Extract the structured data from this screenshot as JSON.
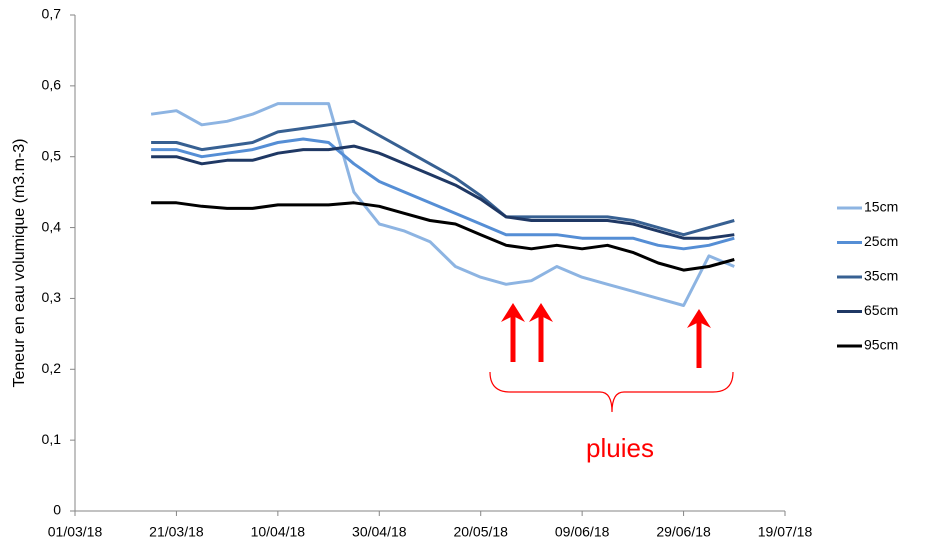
{
  "chart_data": {
    "type": "line",
    "y_label": "Teneur en eau volumique (m3.m-3)",
    "annotation": "pluies",
    "x": [
      "2018-03-16",
      "2018-03-21",
      "2018-03-26",
      "2018-03-31",
      "2018-04-05",
      "2018-04-10",
      "2018-04-15",
      "2018-04-20",
      "2018-04-25",
      "2018-04-30",
      "2018-05-05",
      "2018-05-10",
      "2018-05-15",
      "2018-05-20",
      "2018-05-25",
      "2018-05-30",
      "2018-06-04",
      "2018-06-09",
      "2018-06-14",
      "2018-06-19",
      "2018-06-24",
      "2018-06-29",
      "2018-07-04",
      "2018-07-09"
    ],
    "series": [
      {
        "name": "15cm",
        "color": "#8db4e2",
        "values": [
          0.56,
          0.565,
          0.545,
          0.55,
          0.56,
          0.575,
          0.575,
          0.575,
          0.45,
          0.405,
          0.395,
          0.38,
          0.345,
          0.33,
          0.32,
          0.325,
          0.345,
          0.33,
          0.32,
          0.31,
          0.3,
          0.29,
          0.36,
          0.345
        ]
      },
      {
        "name": "25cm",
        "color": "#558ed5",
        "values": [
          0.51,
          0.51,
          0.5,
          0.505,
          0.51,
          0.52,
          0.525,
          0.52,
          0.49,
          0.465,
          0.45,
          0.435,
          0.42,
          0.405,
          0.39,
          0.39,
          0.39,
          0.385,
          0.385,
          0.385,
          0.375,
          0.37,
          0.375,
          0.385
        ]
      },
      {
        "name": "35cm",
        "color": "#376092",
        "values": [
          0.52,
          0.52,
          0.51,
          0.515,
          0.52,
          0.535,
          0.54,
          0.545,
          0.55,
          0.53,
          0.51,
          0.49,
          0.47,
          0.445,
          0.415,
          0.415,
          0.415,
          0.415,
          0.415,
          0.41,
          0.4,
          0.39,
          0.4,
          0.41
        ]
      },
      {
        "name": "65cm",
        "color": "#1f3864",
        "values": [
          0.5,
          0.5,
          0.49,
          0.495,
          0.495,
          0.505,
          0.51,
          0.51,
          0.515,
          0.505,
          0.49,
          0.475,
          0.46,
          0.44,
          0.415,
          0.41,
          0.41,
          0.41,
          0.41,
          0.405,
          0.395,
          0.385,
          0.385,
          0.39
        ]
      },
      {
        "name": "95cm",
        "color": "#000000",
        "values": [
          0.435,
          0.435,
          0.43,
          0.427,
          0.427,
          0.432,
          0.432,
          0.432,
          0.435,
          0.43,
          0.42,
          0.41,
          0.405,
          0.39,
          0.375,
          0.37,
          0.375,
          0.37,
          0.375,
          0.365,
          0.35,
          0.34,
          0.345,
          0.355
        ]
      }
    ],
    "xlim": [
      "2018-03-01",
      "2018-07-19"
    ],
    "xticks": [
      {
        "value": "2018-03-01",
        "label": "01/03/18"
      },
      {
        "value": "2018-03-21",
        "label": "21/03/18"
      },
      {
        "value": "2018-04-10",
        "label": "10/04/18"
      },
      {
        "value": "2018-04-30",
        "label": "30/04/18"
      },
      {
        "value": "2018-05-20",
        "label": "20/05/18"
      },
      {
        "value": "2018-06-09",
        "label": "09/06/18"
      },
      {
        "value": "2018-06-29",
        "label": "29/06/18"
      },
      {
        "value": "2018-07-19",
        "label": "19/07/18"
      }
    ],
    "ylim": [
      0,
      0.7
    ],
    "yticks": [
      0,
      {
        "value": 0.1,
        "label": "0,1"
      },
      {
        "value": 0.2,
        "label": "0,2"
      },
      {
        "value": 0.3,
        "label": "0,3"
      },
      {
        "value": 0.4,
        "label": "0,4"
      },
      {
        "value": 0.5,
        "label": "0,5"
      },
      {
        "value": 0.6,
        "label": "0,6"
      },
      {
        "value": 0.7,
        "label": "0,7"
      }
    ],
    "grid": false,
    "legend": "right"
  }
}
